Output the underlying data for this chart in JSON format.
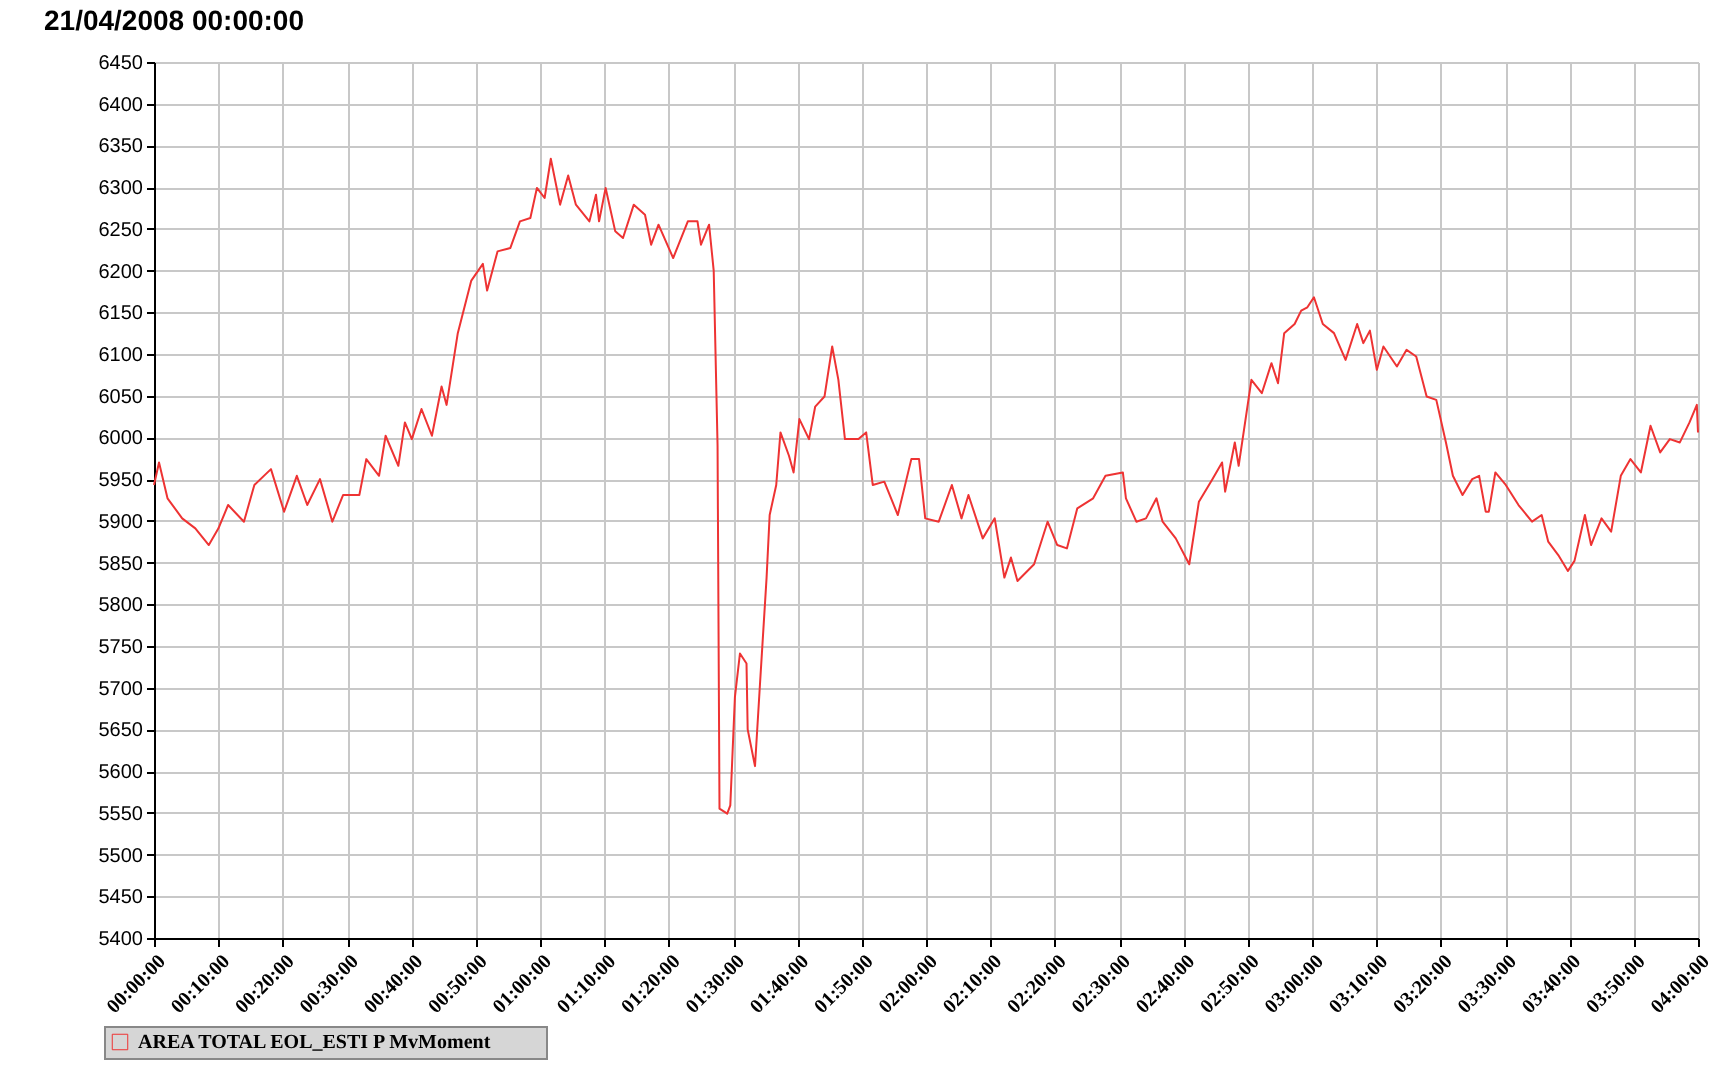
{
  "chart_data": {
    "type": "line",
    "title": "21/04/2008 00:00:00",
    "x": [
      0,
      0.013,
      0.035,
      0.073,
      0.107,
      0.142,
      0.167,
      0.192,
      0.233,
      0.26,
      0.303,
      0.337,
      0.37,
      0.397,
      0.43,
      0.462,
      0.49,
      0.532,
      0.55,
      0.583,
      0.6,
      0.633,
      0.65,
      0.668,
      0.693,
      0.72,
      0.745,
      0.758,
      0.787,
      0.822,
      0.852,
      0.863,
      0.89,
      0.923,
      0.948,
      0.975,
      0.992,
      1.012,
      1.028,
      1.052,
      1.073,
      1.093,
      1.128,
      1.145,
      1.153,
      1.17,
      1.195,
      1.215,
      1.243,
      1.272,
      1.288,
      1.307,
      1.345,
      1.383,
      1.408,
      1.417,
      1.438,
      1.45,
      1.46,
      1.465,
      1.485,
      1.493,
      1.505,
      1.518,
      1.535,
      1.538,
      1.557,
      1.57,
      1.587,
      1.595,
      1.612,
      1.623,
      1.645,
      1.657,
      1.672,
      1.697,
      1.713,
      1.737,
      1.757,
      1.773,
      1.79,
      1.825,
      1.845,
      1.862,
      1.892,
      1.927,
      1.962,
      1.982,
      1.998,
      2.033,
      2.067,
      2.092,
      2.11,
      2.147,
      2.178,
      2.203,
      2.22,
      2.237,
      2.28,
      2.315,
      2.34,
      2.365,
      2.392,
      2.433,
      2.465,
      2.51,
      2.518,
      2.545,
      2.57,
      2.597,
      2.613,
      2.647,
      2.682,
      2.707,
      2.742,
      2.767,
      2.775,
      2.8,
      2.81,
      2.843,
      2.87,
      2.895,
      2.912,
      2.928,
      2.955,
      2.972,
      2.988,
      3.005,
      3.028,
      3.057,
      3.087,
      3.117,
      3.133,
      3.15,
      3.168,
      3.185,
      3.22,
      3.245,
      3.27,
      3.297,
      3.322,
      3.347,
      3.365,
      3.39,
      3.415,
      3.433,
      3.45,
      3.458,
      3.475,
      3.502,
      3.535,
      3.57,
      3.595,
      3.612,
      3.638,
      3.663,
      3.68,
      3.707,
      3.723,
      3.75,
      3.775,
      3.8,
      3.825,
      3.852,
      3.877,
      3.902,
      3.927,
      3.953,
      3.978,
      3.997,
      4
    ],
    "series": [
      {
        "name": "AREA    TOTAL    EOL_ESTI P    MvMoment",
        "color": "#ee3333",
        "values": [
          5943,
          5970,
          5927,
          5903,
          5891,
          5871,
          5891,
          5919,
          5899,
          5943,
          5962,
          5911,
          5954,
          5919,
          5950,
          5899,
          5931,
          5931,
          5974,
          5954,
          6002,
          5966,
          6018,
          5998,
          6034,
          6002,
          6061,
          6039,
          6125,
          6188,
          6208,
          6176,
          6223,
          6227,
          6259,
          6263,
          6299,
          6287,
          6334,
          6279,
          6314,
          6279,
          6259,
          6291,
          6259,
          6299,
          6247,
          6239,
          6279,
          6267,
          6231,
          6255,
          6215,
          6259,
          6259,
          6231,
          6255,
          6200,
          5990,
          5555,
          5549,
          5559,
          5689,
          5741,
          5729,
          5650,
          5606,
          5705,
          5832,
          5907,
          5943,
          6006,
          5978,
          5958,
          6022,
          5998,
          6037,
          6049,
          6109,
          6069,
          5998,
          5998,
          6006,
          5943,
          5947,
          5907,
          5974,
          5974,
          5903,
          5899,
          5943,
          5903,
          5931,
          5879,
          5903,
          5832,
          5856,
          5828,
          5848,
          5899,
          5871,
          5867,
          5915,
          5927,
          5954,
          5958,
          5927,
          5899,
          5903,
          5927,
          5899,
          5879,
          5848,
          5923,
          5950,
          5970,
          5935,
          5994,
          5966,
          6069,
          6053,
          6089,
          6065,
          6125,
          6136,
          6152,
          6156,
          6168,
          6136,
          6125,
          6093,
          6136,
          6113,
          6128,
          6081,
          6109,
          6085,
          6105,
          6097,
          6049,
          6045,
          5994,
          5954,
          5931,
          5950,
          5954,
          5911,
          5911,
          5958,
          5943,
          5919,
          5899,
          5907,
          5875,
          5859,
          5840,
          5852,
          5907,
          5871,
          5903,
          5887,
          5954,
          5974,
          5958,
          6014,
          5982,
          5998,
          5994,
          6018,
          6039,
          6006
        ]
      }
    ],
    "xlim": [
      0,
      4
    ],
    "xticks": [
      {
        "value": 0,
        "label": "00:00:00"
      },
      {
        "value": 0.1667,
        "label": "00:10:00"
      },
      {
        "value": 0.3333,
        "label": "00:20:00"
      },
      {
        "value": 0.5,
        "label": "00:30:00"
      },
      {
        "value": 0.6667,
        "label": "00:40:00"
      },
      {
        "value": 0.8333,
        "label": "00:50:00"
      },
      {
        "value": 1,
        "label": "01:00:00"
      },
      {
        "value": 1.1667,
        "label": "01:10:00"
      },
      {
        "value": 1.3333,
        "label": "01:20:00"
      },
      {
        "value": 1.5,
        "label": "01:30:00"
      },
      {
        "value": 1.6667,
        "label": "01:40:00"
      },
      {
        "value": 1.8333,
        "label": "01:50:00"
      },
      {
        "value": 2,
        "label": "02:00:00"
      },
      {
        "value": 2.1667,
        "label": "02:10:00"
      },
      {
        "value": 2.3333,
        "label": "02:20:00"
      },
      {
        "value": 2.5,
        "label": "02:30:00"
      },
      {
        "value": 2.6667,
        "label": "02:40:00"
      },
      {
        "value": 2.8333,
        "label": "02:50:00"
      },
      {
        "value": 3,
        "label": "03:00:00"
      },
      {
        "value": 3.1667,
        "label": "03:10:00"
      },
      {
        "value": 3.3333,
        "label": "03:20:00"
      },
      {
        "value": 3.5,
        "label": "03:30:00"
      },
      {
        "value": 3.6667,
        "label": "03:40:00"
      },
      {
        "value": 3.8333,
        "label": "03:50:00"
      },
      {
        "value": 4,
        "label": "04:00:00"
      }
    ],
    "ylim": [
      5400,
      6450
    ],
    "yticks": [
      5400,
      5450,
      5500,
      5550,
      5600,
      5650,
      5700,
      5750,
      5800,
      5850,
      5900,
      5950,
      6000,
      6050,
      6100,
      6150,
      6200,
      6250,
      6300,
      6350,
      6400,
      6450
    ],
    "grid": true,
    "legend": "bottom left",
    "marker": "none",
    "line_style": "solid"
  }
}
